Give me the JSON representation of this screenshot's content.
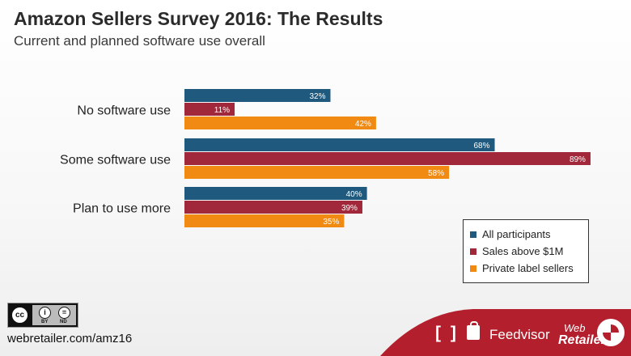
{
  "title": "Amazon Sellers Survey 2016: The Results",
  "subtitle": "Current and planned software use overall",
  "chart_data": {
    "type": "bar",
    "orientation": "horizontal",
    "categories": [
      "No software use",
      "Some software use",
      "Plan to use more"
    ],
    "series": [
      {
        "name": "All participants",
        "values": [
          32,
          68,
          40
        ],
        "labels": [
          "32%",
          "68%",
          "40%"
        ],
        "color": "#1f5a7e"
      },
      {
        "name": "Sales above $1M",
        "values": [
          11,
          89,
          39
        ],
        "labels": [
          "11%",
          "89%",
          "39%"
        ],
        "color": "#a0283a"
      },
      {
        "name": "Private label sellers",
        "values": [
          42,
          58,
          35
        ],
        "labels": [
          "42%",
          "58%",
          "35%"
        ],
        "color": "#f08a12"
      }
    ],
    "xlim": [
      0,
      100
    ],
    "unit": "%",
    "legend_position": "bottom-right",
    "grid": false
  },
  "footer": {
    "url": "webretailer.com/amz16",
    "license": {
      "cc": "cc",
      "by": "BY",
      "nd": "ND"
    },
    "brand1": "Feedvisor",
    "brand1_brackets": "[ ]",
    "brand2_line1": "Web",
    "brand2_line2": "Retailer"
  },
  "colors": {
    "footer_band": "#b41f2d"
  }
}
